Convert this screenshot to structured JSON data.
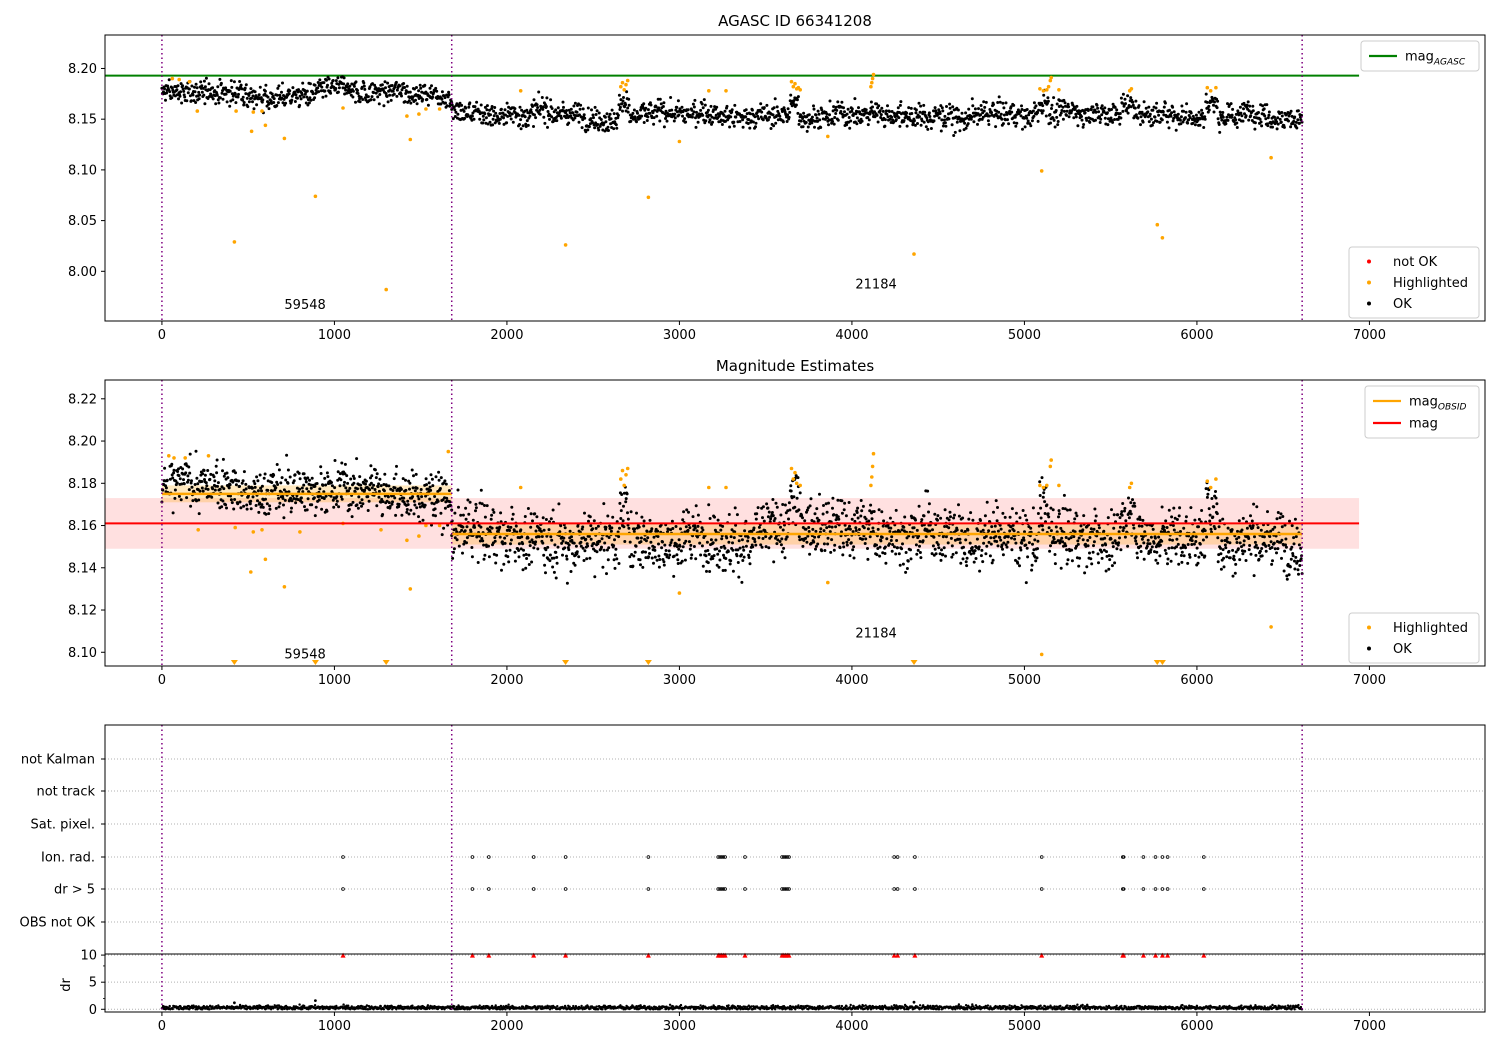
{
  "chart_data": [
    {
      "id": "agasc-panel",
      "type": "scatter",
      "title": "AGASC ID 66341208",
      "xlim": [
        -330,
        7670
      ],
      "ylim": [
        7.951,
        8.233
      ],
      "xticks": [
        0,
        1000,
        2000,
        3000,
        4000,
        5000,
        6000,
        7000
      ],
      "yticks": [
        8.0,
        8.05,
        8.1,
        8.15,
        8.2
      ],
      "ytick_labels": [
        "8.00",
        "8.05",
        "8.10",
        "8.15",
        "8.20"
      ],
      "grid": false,
      "legend_upper": {
        "placement": "top-right",
        "entries": [
          {
            "label": "mag",
            "subscript": "AGASC",
            "color": "#008000",
            "kind": "line"
          }
        ]
      },
      "legend_lower": {
        "placement": "bottom-right",
        "entries": [
          {
            "label": "not OK",
            "color": "#ff0000",
            "kind": "dot"
          },
          {
            "label": "Highlighted",
            "color": "#ffa500",
            "kind": "dot"
          },
          {
            "label": "OK",
            "color": "#000000",
            "kind": "dot"
          }
        ]
      },
      "hlines": [
        {
          "name": "mag_AGASC",
          "y": 8.193,
          "x_end": 6940,
          "color": "#008000"
        }
      ],
      "vlines": [
        0,
        1680,
        6610
      ],
      "vline_color": "#800080",
      "obsid_labels": [
        {
          "text": "59548",
          "x": 830,
          "y": 7.963
        },
        {
          "text": "21184",
          "x": 4140,
          "y": 7.983
        }
      ],
      "segments": [
        {
          "x": [
            0,
            1680
          ],
          "center": 8.176,
          "spread": 0.0055
        },
        {
          "x": [
            1680,
            6610
          ],
          "center": 8.156,
          "spread": 0.0058
        }
      ],
      "bumps": [
        {
          "x": [
            2650,
            2710
          ],
          "delta": 0.018
        },
        {
          "x": [
            3640,
            3690
          ],
          "delta": 0.017
        },
        {
          "x": [
            5080,
            5140
          ],
          "delta": 0.017
        },
        {
          "x": [
            5560,
            5650
          ],
          "delta": 0.012
        },
        {
          "x": [
            6050,
            6120
          ],
          "delta": 0.018
        }
      ],
      "highlighted_points": [
        {
          "x": 60,
          "y": 8.19
        },
        {
          "x": 100,
          "y": 8.189
        },
        {
          "x": 160,
          "y": 8.187
        },
        {
          "x": 205,
          "y": 8.158
        },
        {
          "x": 420,
          "y": 8.029
        },
        {
          "x": 430,
          "y": 8.158
        },
        {
          "x": 520,
          "y": 8.138
        },
        {
          "x": 530,
          "y": 8.157
        },
        {
          "x": 580,
          "y": 8.158
        },
        {
          "x": 600,
          "y": 8.144
        },
        {
          "x": 710,
          "y": 8.131
        },
        {
          "x": 890,
          "y": 8.074
        },
        {
          "x": 1050,
          "y": 8.161
        },
        {
          "x": 1300,
          "y": 7.982
        },
        {
          "x": 1420,
          "y": 8.153
        },
        {
          "x": 1440,
          "y": 8.13
        },
        {
          "x": 1490,
          "y": 8.155
        },
        {
          "x": 1530,
          "y": 8.16
        },
        {
          "x": 1610,
          "y": 8.16
        },
        {
          "x": 2080,
          "y": 8.178
        },
        {
          "x": 2340,
          "y": 8.026
        },
        {
          "x": 2660,
          "y": 8.182
        },
        {
          "x": 2670,
          "y": 8.186
        },
        {
          "x": 2680,
          "y": 8.179
        },
        {
          "x": 2690,
          "y": 8.184
        },
        {
          "x": 2700,
          "y": 8.188
        },
        {
          "x": 2820,
          "y": 8.073
        },
        {
          "x": 3000,
          "y": 8.128
        },
        {
          "x": 3170,
          "y": 8.178
        },
        {
          "x": 3270,
          "y": 8.178
        },
        {
          "x": 3650,
          "y": 8.187
        },
        {
          "x": 3660,
          "y": 8.182
        },
        {
          "x": 3670,
          "y": 8.185
        },
        {
          "x": 3680,
          "y": 8.18
        },
        {
          "x": 3690,
          "y": 8.181
        },
        {
          "x": 3700,
          "y": 8.179
        },
        {
          "x": 3860,
          "y": 8.133
        },
        {
          "x": 4110,
          "y": 8.182
        },
        {
          "x": 4115,
          "y": 8.186
        },
        {
          "x": 4120,
          "y": 8.19
        },
        {
          "x": 4125,
          "y": 8.194
        },
        {
          "x": 4360,
          "y": 8.017
        },
        {
          "x": 5090,
          "y": 8.18
        },
        {
          "x": 5100,
          "y": 8.099
        },
        {
          "x": 5110,
          "y": 8.178
        },
        {
          "x": 5130,
          "y": 8.179
        },
        {
          "x": 5140,
          "y": 8.182
        },
        {
          "x": 5150,
          "y": 8.188
        },
        {
          "x": 5155,
          "y": 8.191
        },
        {
          "x": 5200,
          "y": 8.179
        },
        {
          "x": 5610,
          "y": 8.178
        },
        {
          "x": 5620,
          "y": 8.18
        },
        {
          "x": 5770,
          "y": 8.046
        },
        {
          "x": 5800,
          "y": 8.033
        },
        {
          "x": 6060,
          "y": 8.181
        },
        {
          "x": 6080,
          "y": 8.178
        },
        {
          "x": 6110,
          "y": 8.181
        },
        {
          "x": 6430,
          "y": 8.112
        }
      ]
    },
    {
      "id": "mag-estimates-panel",
      "type": "scatter",
      "title": "Magnitude Estimates",
      "xlim": [
        -330,
        7670
      ],
      "ylim": [
        8.0935,
        8.2289
      ],
      "xticks": [
        0,
        1000,
        2000,
        3000,
        4000,
        5000,
        6000,
        7000
      ],
      "yticks": [
        8.1,
        8.12,
        8.14,
        8.16,
        8.18,
        8.2,
        8.22
      ],
      "ytick_labels": [
        "8.10",
        "8.12",
        "8.14",
        "8.16",
        "8.18",
        "8.20",
        "8.22"
      ],
      "grid": false,
      "legend_upper": {
        "placement": "top-right",
        "entries": [
          {
            "label": "mag",
            "subscript": "OBSID",
            "color": "#ffa500",
            "kind": "line"
          },
          {
            "label": "mag",
            "subscript": "",
            "color": "#ff0000",
            "kind": "line"
          }
        ]
      },
      "legend_lower": {
        "placement": "bottom-right",
        "entries": [
          {
            "label": "Highlighted",
            "color": "#ffa500",
            "kind": "dot"
          },
          {
            "label": "OK",
            "color": "#000000",
            "kind": "dot"
          }
        ]
      },
      "vlines": [
        0,
        1680,
        6610
      ],
      "vline_color": "#800080",
      "mag": {
        "y": 8.161,
        "band": [
          8.149,
          8.173
        ],
        "x": [
          -330,
          6940
        ],
        "color": "#ff0000"
      },
      "mag_obsid": [
        {
          "x": [
            0,
            1680
          ],
          "y": 8.175,
          "band": [
            8.171,
            8.179
          ]
        },
        {
          "x": [
            1680,
            6610
          ],
          "y": 8.156,
          "band": [
            8.151,
            8.161
          ]
        }
      ],
      "obsid_labels": [
        {
          "text": "59548",
          "x": 830,
          "y": 8.097
        },
        {
          "text": "21184",
          "x": 4140,
          "y": 8.107
        }
      ],
      "segments": [
        {
          "x": [
            0,
            1680
          ],
          "center": 8.177,
          "spread": 0.0055
        },
        {
          "x": [
            1680,
            6610
          ],
          "center": 8.156,
          "spread": 0.0068
        }
      ],
      "bumps": [
        {
          "x": [
            2650,
            2710
          ],
          "delta": 0.018
        },
        {
          "x": [
            3640,
            3690
          ],
          "delta": 0.017
        },
        {
          "x": [
            5080,
            5140
          ],
          "delta": 0.017
        },
        {
          "x": [
            5560,
            5650
          ],
          "delta": 0.012
        },
        {
          "x": [
            6050,
            6120
          ],
          "delta": 0.018
        }
      ],
      "highlighted_points": [
        {
          "x": 40,
          "y": 8.193
        },
        {
          "x": 70,
          "y": 8.192
        },
        {
          "x": 135,
          "y": 8.192
        },
        {
          "x": 210,
          "y": 8.158
        },
        {
          "x": 270,
          "y": 8.193
        },
        {
          "x": 425,
          "y": 8.159
        },
        {
          "x": 515,
          "y": 8.138
        },
        {
          "x": 530,
          "y": 8.157
        },
        {
          "x": 580,
          "y": 8.158
        },
        {
          "x": 600,
          "y": 8.144
        },
        {
          "x": 710,
          "y": 8.131
        },
        {
          "x": 800,
          "y": 8.157
        },
        {
          "x": 1050,
          "y": 8.161
        },
        {
          "x": 1270,
          "y": 8.158
        },
        {
          "x": 1420,
          "y": 8.153
        },
        {
          "x": 1440,
          "y": 8.13
        },
        {
          "x": 1490,
          "y": 8.155
        },
        {
          "x": 1530,
          "y": 8.16
        },
        {
          "x": 1610,
          "y": 8.16
        },
        {
          "x": 1660,
          "y": 8.195
        },
        {
          "x": 2080,
          "y": 8.178
        },
        {
          "x": 2660,
          "y": 8.182
        },
        {
          "x": 2670,
          "y": 8.186
        },
        {
          "x": 2680,
          "y": 8.179
        },
        {
          "x": 2690,
          "y": 8.184
        },
        {
          "x": 2700,
          "y": 8.187
        },
        {
          "x": 3000,
          "y": 8.128
        },
        {
          "x": 3170,
          "y": 8.178
        },
        {
          "x": 3270,
          "y": 8.178
        },
        {
          "x": 3650,
          "y": 8.187
        },
        {
          "x": 3660,
          "y": 8.182
        },
        {
          "x": 3670,
          "y": 8.185
        },
        {
          "x": 3680,
          "y": 8.18
        },
        {
          "x": 3700,
          "y": 8.179
        },
        {
          "x": 3860,
          "y": 8.133
        },
        {
          "x": 4110,
          "y": 8.179
        },
        {
          "x": 4115,
          "y": 8.183
        },
        {
          "x": 4120,
          "y": 8.188
        },
        {
          "x": 4125,
          "y": 8.194
        },
        {
          "x": 5090,
          "y": 8.179
        },
        {
          "x": 5100,
          "y": 8.099
        },
        {
          "x": 5110,
          "y": 8.178
        },
        {
          "x": 5130,
          "y": 8.179
        },
        {
          "x": 5150,
          "y": 8.188
        },
        {
          "x": 5155,
          "y": 8.191
        },
        {
          "x": 5200,
          "y": 8.179
        },
        {
          "x": 5610,
          "y": 8.178
        },
        {
          "x": 5620,
          "y": 8.18
        },
        {
          "x": 6060,
          "y": 8.181
        },
        {
          "x": 6080,
          "y": 8.178
        },
        {
          "x": 6110,
          "y": 8.182
        },
        {
          "x": 6430,
          "y": 8.112
        }
      ],
      "off_scale_markers": [
        420,
        890,
        1300,
        2340,
        2820,
        4360,
        5770,
        5800
      ],
      "off_scale_color": "#ffa500"
    },
    {
      "id": "flags-panel",
      "type": "scatter",
      "xlim": [
        -330,
        7670
      ],
      "xticks": [],
      "row_labels": [
        "not Kalman",
        "not track",
        "Sat. pixel.",
        "Ion. rad.",
        "dr > 5",
        "OBS not OK"
      ],
      "grid": "horizontal-dotted",
      "vlines": [
        0,
        1680,
        6610
      ],
      "vline_color": "#800080",
      "flagged_rows": [
        "Ion. rad.",
        "dr > 5"
      ],
      "flagged_x": [
        1050,
        1800,
        1895,
        2155,
        2340,
        2820,
        3225,
        3235,
        3245,
        3255,
        3265,
        3380,
        3595,
        3605,
        3615,
        3625,
        3635,
        4245,
        4265,
        4365,
        5100,
        5570,
        5575,
        5690,
        5760,
        5800,
        5830,
        6040
      ]
    },
    {
      "id": "dr-panel",
      "type": "scatter",
      "xlim": [
        -330,
        7670
      ],
      "ylim": [
        -0.5,
        10.2
      ],
      "xticks": [
        0,
        1000,
        2000,
        3000,
        4000,
        5000,
        6000,
        7000
      ],
      "yticks": [
        0,
        5,
        10
      ],
      "ytick_labels": [
        "0",
        "5",
        "10"
      ],
      "ylabel": "dr",
      "grid": "horizontal-dotted",
      "vlines": [
        0,
        1680,
        6610
      ],
      "vline_color": "#800080",
      "baseline": {
        "x": [
          0,
          6610
        ],
        "center": 0.3,
        "spread": 0.2
      },
      "outliers": [
        {
          "x": 420,
          "y": 1.2
        },
        {
          "x": 890,
          "y": 1.6
        },
        {
          "x": 4360,
          "y": 1.3
        }
      ],
      "capped_markers": {
        "y": 10,
        "color": "#ff0000",
        "x": [
          1050,
          1800,
          1895,
          2155,
          2340,
          2820,
          3225,
          3235,
          3245,
          3255,
          3265,
          3380,
          3595,
          3605,
          3615,
          3625,
          3635,
          4245,
          4265,
          4365,
          5100,
          5570,
          5575,
          5690,
          5760,
          5800,
          5830,
          6040
        ]
      }
    }
  ]
}
